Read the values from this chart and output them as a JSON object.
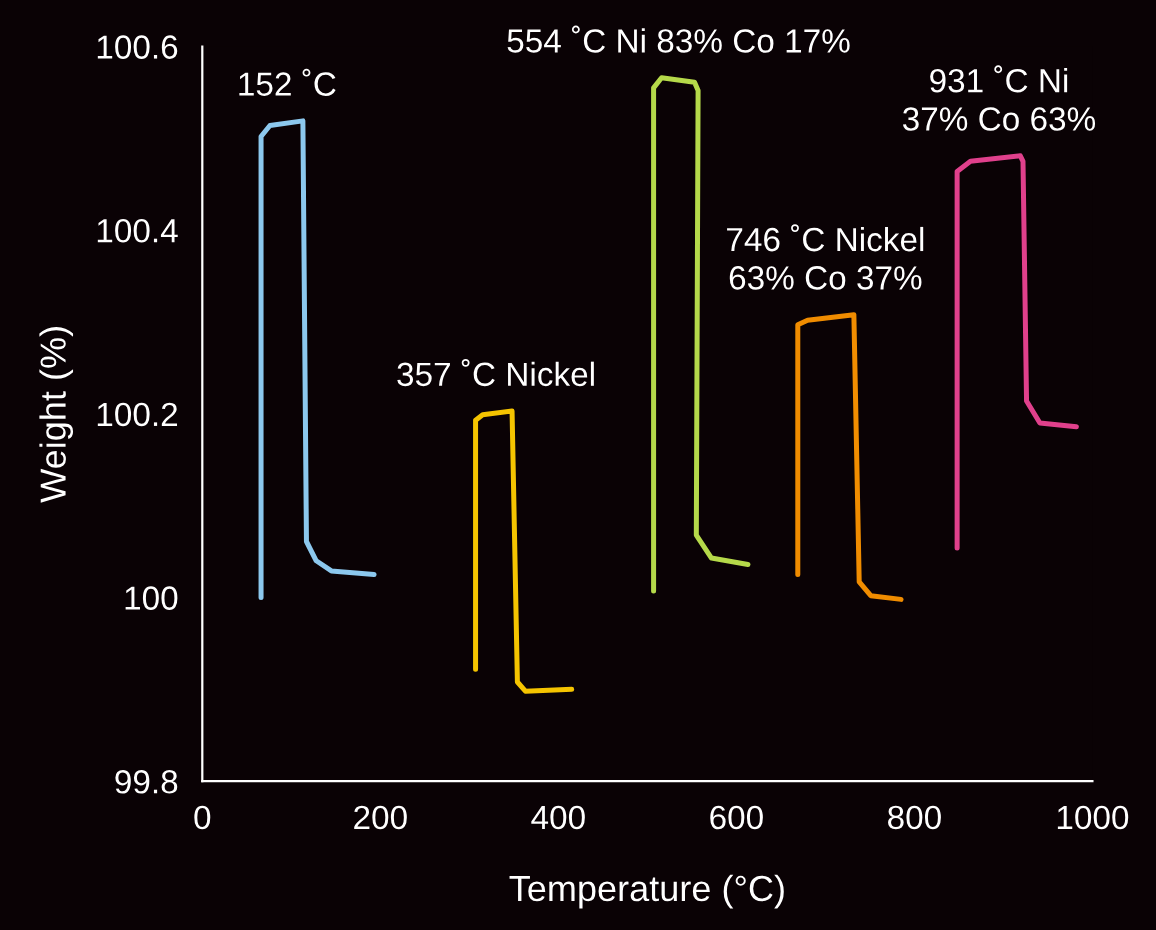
{
  "chart_data": {
    "type": "line",
    "xlabel": "Temperature (°C)",
    "ylabel": "Weight (%)",
    "xlim": [
      0,
      1000
    ],
    "ylim": [
      99.8,
      100.6
    ],
    "xticks": [
      0,
      200,
      400,
      600,
      800,
      1000
    ],
    "yticks": [
      99.8,
      100,
      100.2,
      100.4,
      100.6
    ],
    "grid": false,
    "legend": false,
    "marker": "none",
    "line_style": "solid",
    "series": [
      {
        "color": "#8cc8ee",
        "x": [
          66,
          66,
          76,
          113,
          117,
          128,
          145,
          193
        ],
        "values": [
          100.0,
          100.502,
          100.514,
          100.519,
          100.061,
          100.04,
          100.029,
          100.025
        ]
      },
      {
        "color": "#f5c400",
        "x": [
          307,
          307,
          315,
          348,
          354,
          363,
          415
        ],
        "values": [
          99.922,
          100.193,
          100.199,
          100.203,
          99.908,
          99.898,
          99.9
        ]
      },
      {
        "color": "#b5d94a",
        "x": [
          507,
          507,
          516,
          553,
          557,
          555,
          572,
          613
        ],
        "values": [
          100.007,
          100.555,
          100.566,
          100.561,
          100.552,
          100.068,
          100.043,
          100.036
        ]
      },
      {
        "color": "#f08c00",
        "x": [
          669,
          669,
          680,
          732,
          738,
          751,
          785
        ],
        "values": [
          100.025,
          100.297,
          100.302,
          100.308,
          100.017,
          100.002,
          99.998
        ]
      },
      {
        "color": "#e0408c",
        "x": [
          848,
          848,
          863,
          919,
          922,
          926,
          941,
          982
        ],
        "values": [
          100.054,
          100.464,
          100.475,
          100.481,
          100.475,
          100.214,
          100.19,
          100.186
        ]
      }
    ],
    "annotations": [
      {
        "text": "152 ˚C",
        "x": 95,
        "y": 100.519
      },
      {
        "text": "357 ˚C Nickel",
        "x": 330,
        "y": 100.203
      },
      {
        "text": "554 ˚C Ni 83% Co 17%",
        "x": 535,
        "y": 100.566
      },
      {
        "text": "746 ˚C Nickel\n63% Co 37%",
        "x": 700,
        "y": 100.308
      },
      {
        "text": "931 ˚C Ni 37% Co 63%",
        "x": 895,
        "y": 100.481
      }
    ]
  }
}
